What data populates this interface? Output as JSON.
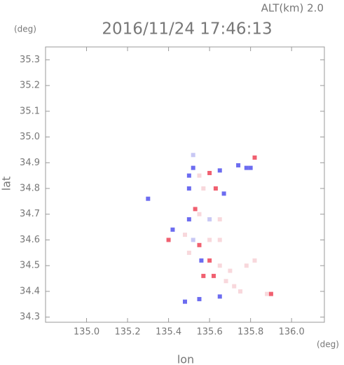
{
  "chart_data": {
    "type": "scatter",
    "title": "2016/11/24 17:46:13",
    "annotation": "ALT(km) 2.0",
    "y_unit": "(deg)",
    "x_unit": "(deg)",
    "xlabel": "lon",
    "ylabel": "lat",
    "xlim": [
      134.8,
      136.16
    ],
    "ylim": [
      34.28,
      35.35
    ],
    "xticks": [
      {
        "value": 135,
        "label": "135.0"
      },
      135.2,
      135.4,
      135.6,
      135.8,
      {
        "value": 136,
        "label": "136.0"
      }
    ],
    "yticks": [
      34.3,
      34.4,
      34.5,
      34.6,
      34.7,
      34.8,
      34.9,
      {
        "value": 35,
        "label": "35.0"
      },
      35.1,
      35.2,
      35.3
    ],
    "x": [
      135.52,
      135.5,
      135.55,
      135.6,
      135.65,
      135.74,
      135.78,
      135.82,
      135.8,
      135.5,
      135.57,
      135.63,
      135.67,
      135.53,
      135.5,
      135.55,
      135.6,
      135.65,
      135.42,
      135.48,
      135.52,
      135.55,
      135.6,
      135.65,
      135.4,
      135.5,
      135.56,
      135.6,
      135.65,
      135.7,
      135.78,
      135.82,
      135.57,
      135.62,
      135.68,
      135.72,
      135.75,
      135.88,
      135.9,
      135.48,
      135.55,
      135.65,
      135.3,
      135.52
    ],
    "values": [
      34.88,
      34.85,
      34.85,
      34.86,
      34.87,
      34.89,
      34.88,
      34.92,
      34.88,
      34.8,
      34.8,
      34.8,
      34.78,
      34.72,
      34.68,
      34.7,
      34.68,
      34.68,
      34.64,
      34.62,
      34.6,
      34.58,
      34.6,
      34.6,
      34.6,
      34.55,
      34.52,
      34.52,
      34.5,
      34.48,
      34.5,
      34.52,
      34.46,
      34.46,
      34.44,
      34.42,
      34.4,
      34.39,
      34.39,
      34.36,
      34.37,
      34.38,
      34.76,
      34.93
    ],
    "colors": [
      "#6c6cf0",
      "#6c6cf0",
      "#f8d8dc",
      "#f06070",
      "#6c6cf0",
      "#6c6cf0",
      "#6c6cf0",
      "#f06070",
      "#6c6cf0",
      "#6c6cf0",
      "#f8d8dc",
      "#f06070",
      "#6c6cf0",
      "#f06070",
      "#6c6cf0",
      "#f8d8dc",
      "#c8c8f4",
      "#f8d8dc",
      "#6c6cf0",
      "#f8d8dc",
      "#c8c8f4",
      "#f06070",
      "#f8d8dc",
      "#f8d8dc",
      "#f06070",
      "#f8d8dc",
      "#6c6cf0",
      "#f06070",
      "#f8d8dc",
      "#f8d8dc",
      "#f8d8dc",
      "#f8d8dc",
      "#f06070",
      "#f06070",
      "#f8d8dc",
      "#f8d8dc",
      "#f8d8dc",
      "#f8d8dc",
      "#f06070",
      "#6c6cf0",
      "#6c6cf0",
      "#6c6cf0",
      "#6c6cf0",
      "#c8c8f4"
    ]
  }
}
